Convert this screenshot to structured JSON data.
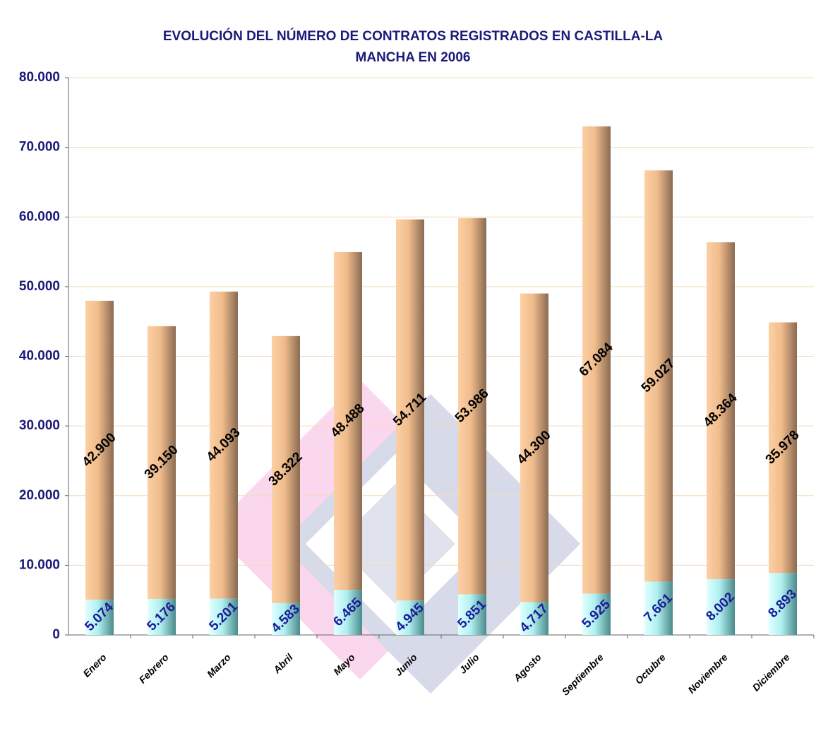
{
  "chart_data": {
    "type": "stacked_bar",
    "title": [
      "EVOLUCIÓN DEL NÚMERO DE CONTRATOS REGISTRADOS EN CASTILLA-LA",
      "MANCHA EN 2006"
    ],
    "categories": [
      "Enero",
      "Febrero",
      "Marzo",
      "Abril",
      "Mayo",
      "Junio",
      "Julio",
      "Agosto",
      "Septiembre",
      "Octubre",
      "Noviembre",
      "Diciembre"
    ],
    "series": [
      {
        "color": "#9fe6e6",
        "values": [
          5074,
          5176,
          5201,
          4583,
          6465,
          4945,
          5851,
          4717,
          5925,
          7661,
          8002,
          8893
        ],
        "value_labels": [
          "5.074",
          "5.176",
          "5.201",
          "4.583",
          "6.465",
          "4.945",
          "5.851",
          "4.717",
          "5.925",
          "7.661",
          "8.002",
          "8.893"
        ]
      },
      {
        "color": "#f4c090",
        "values": [
          42900,
          39150,
          44093,
          38322,
          48488,
          54711,
          53986,
          44300,
          67084,
          59027,
          48364,
          35978
        ],
        "value_labels": [
          "42.900",
          "39.150",
          "44.093",
          "38.322",
          "48.488",
          "54.711",
          "53.986",
          "44.300",
          "67.084",
          "59.027",
          "48.364",
          "35.978"
        ]
      }
    ],
    "ylim": [
      0,
      80000
    ],
    "yticks": [
      0,
      {
        "value": 10000,
        "label": "10.000"
      },
      {
        "value": 20000,
        "label": "20.000"
      },
      {
        "value": 30000,
        "label": "30.000"
      },
      {
        "value": 40000,
        "label": "40.000"
      },
      {
        "value": 50000,
        "label": "50.000"
      },
      {
        "value": 60000,
        "label": "60.000"
      },
      {
        "value": 70000,
        "label": "70.000"
      },
      {
        "value": 80000,
        "label": "80.000"
      }
    ],
    "grid": true
  }
}
